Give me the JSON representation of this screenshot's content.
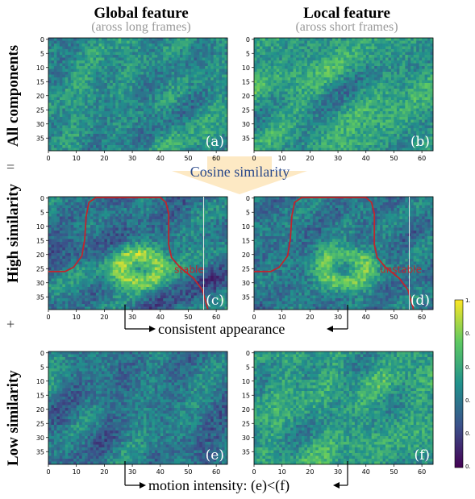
{
  "columns": [
    {
      "title": "Global feature",
      "subtitle": "(aross long frames)"
    },
    {
      "title": "Local feature",
      "subtitle": "(aross short frames)"
    }
  ],
  "rows": [
    {
      "label": "All components"
    },
    {
      "label": "High similarity"
    },
    {
      "label": "Low similarity"
    }
  ],
  "operators": {
    "equals": "=",
    "plus": "+"
  },
  "cosine_label": "Cosine similarity",
  "consistent_label": "consistent appearance",
  "motion_label": "motion intensity: (e)<(f)",
  "panels": [
    {
      "id": "a",
      "label": "(a)",
      "seed": 11,
      "style": "mixed",
      "contour": false
    },
    {
      "id": "b",
      "label": "(b)",
      "seed": 23,
      "style": "bright",
      "contour": false
    },
    {
      "id": "c",
      "label": "(c)",
      "seed": 37,
      "style": "blob",
      "contour": true,
      "annotation": "stable"
    },
    {
      "id": "d",
      "label": "(d)",
      "seed": 41,
      "style": "blob",
      "contour": true,
      "annotation": "unstable"
    },
    {
      "id": "e",
      "label": "(e)",
      "seed": 53,
      "style": "dark",
      "contour": false
    },
    {
      "id": "f",
      "label": "(f)",
      "seed": 67,
      "style": "bright",
      "contour": false
    }
  ],
  "axes": {
    "x_ticks": [
      0,
      10,
      20,
      30,
      40,
      50,
      60
    ],
    "y_ticks": [
      0,
      5,
      10,
      15,
      20,
      25,
      30,
      35
    ],
    "x_range": [
      0,
      63
    ],
    "y_range": [
      0,
      39
    ]
  },
  "colorbar": {
    "top_label": "1.",
    "tick_labels": [
      "0.",
      "0.",
      "0.",
      "0.",
      "0."
    ],
    "colormap": "viridis"
  },
  "colors": {
    "contour": "#c0262d",
    "cosine_text": "#2c4a8a",
    "arrow_fill": "#fde9c4",
    "subtitle": "#9a9a9a"
  }
}
